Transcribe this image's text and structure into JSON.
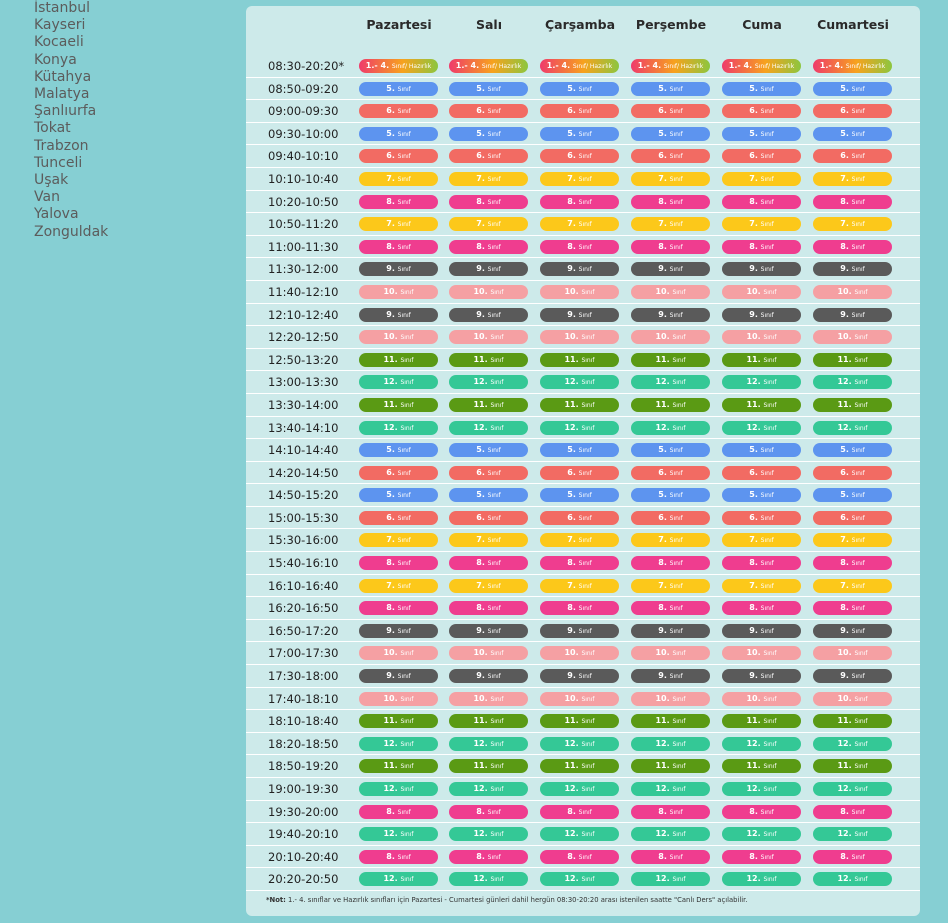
{
  "cities": [
    "İstanbul",
    "Kayseri",
    "Kocaeli",
    "Konya",
    "Kütahya",
    "Malatya",
    "Şanlıurfa",
    "Tokat",
    "Trabzon",
    "Tunceli",
    "Uşak",
    "Van",
    "Yalova",
    "Zonguldak"
  ],
  "days": [
    "Pazartesi",
    "Salı",
    "Çarşamba",
    "Perşembe",
    "Cuma",
    "Cumartesi"
  ],
  "grade_suffix": "Sınıf",
  "first_grade_suffix": "Sınıf/ Hazırlık",
  "colors": {
    "g1": "linear-gradient(90deg,#ef3b6b 0%,#f7a21e 55%,#8cc63f 100%)",
    "g5": "#5d94ef",
    "g6": "#f26b63",
    "g7": "#fcc81a",
    "g8": "#ef3d8f",
    "g9": "#5a5a5a",
    "g10": "#f5a0a3",
    "g11": "#5a9a14",
    "g12": "#34c896"
  },
  "rows": [
    {
      "time": "08:30-20:20*",
      "grade": "1.- 4.",
      "cls": "g1"
    },
    {
      "time": "08:50-09:20",
      "grade": "5.",
      "cls": "g5"
    },
    {
      "time": "09:00-09:30",
      "grade": "6.",
      "cls": "g6"
    },
    {
      "time": "09:30-10:00",
      "grade": "5.",
      "cls": "g5"
    },
    {
      "time": "09:40-10:10",
      "grade": "6.",
      "cls": "g6"
    },
    {
      "time": "10:10-10:40",
      "grade": "7.",
      "cls": "g7"
    },
    {
      "time": "10:20-10:50",
      "grade": "8.",
      "cls": "g8"
    },
    {
      "time": "10:50-11:20",
      "grade": "7.",
      "cls": "g7"
    },
    {
      "time": "11:00-11:30",
      "grade": "8.",
      "cls": "g8"
    },
    {
      "time": "11:30-12:00",
      "grade": "9.",
      "cls": "g9"
    },
    {
      "time": "11:40-12:10",
      "grade": "10.",
      "cls": "g10"
    },
    {
      "time": "12:10-12:40",
      "grade": "9.",
      "cls": "g9"
    },
    {
      "time": "12:20-12:50",
      "grade": "10.",
      "cls": "g10"
    },
    {
      "time": "12:50-13:20",
      "grade": "11.",
      "cls": "g11"
    },
    {
      "time": "13:00-13:30",
      "grade": "12.",
      "cls": "g12"
    },
    {
      "time": "13:30-14:00",
      "grade": "11.",
      "cls": "g11"
    },
    {
      "time": "13:40-14:10",
      "grade": "12.",
      "cls": "g12"
    },
    {
      "time": "14:10-14:40",
      "grade": "5.",
      "cls": "g5"
    },
    {
      "time": "14:20-14:50",
      "grade": "6.",
      "cls": "g6"
    },
    {
      "time": "14:50-15:20",
      "grade": "5.",
      "cls": "g5"
    },
    {
      "time": "15:00-15:30",
      "grade": "6.",
      "cls": "g6"
    },
    {
      "time": "15:30-16:00",
      "grade": "7.",
      "cls": "g7"
    },
    {
      "time": "15:40-16:10",
      "grade": "8.",
      "cls": "g8"
    },
    {
      "time": "16:10-16:40",
      "grade": "7.",
      "cls": "g7"
    },
    {
      "time": "16:20-16:50",
      "grade": "8.",
      "cls": "g8"
    },
    {
      "time": "16:50-17:20",
      "grade": "9.",
      "cls": "g9"
    },
    {
      "time": "17:00-17:30",
      "grade": "10.",
      "cls": "g10"
    },
    {
      "time": "17:30-18:00",
      "grade": "9.",
      "cls": "g9"
    },
    {
      "time": "17:40-18:10",
      "grade": "10.",
      "cls": "g10"
    },
    {
      "time": "18:10-18:40",
      "grade": "11.",
      "cls": "g11"
    },
    {
      "time": "18:20-18:50",
      "grade": "12.",
      "cls": "g12"
    },
    {
      "time": "18:50-19:20",
      "grade": "11.",
      "cls": "g11"
    },
    {
      "time": "19:00-19:30",
      "grade": "12.",
      "cls": "g12"
    },
    {
      "time": "19:30-20:00",
      "grade": "8.",
      "cls": "g8"
    },
    {
      "time": "19:40-20:10",
      "grade": "12.",
      "cls": "g12"
    },
    {
      "time": "20:10-20:40",
      "grade": "8.",
      "cls": "g8"
    },
    {
      "time": "20:20-20:50",
      "grade": "12.",
      "cls": "g12"
    }
  ],
  "note": {
    "label": "*Not:",
    "text": " 1.- 4. sınıflar ve Hazırlık sınıfları için Pazartesi - Cumartesi günleri dahil hergün 08:30-20:20 arası istenilen saatte \"Canlı Ders\" açılabilir."
  }
}
